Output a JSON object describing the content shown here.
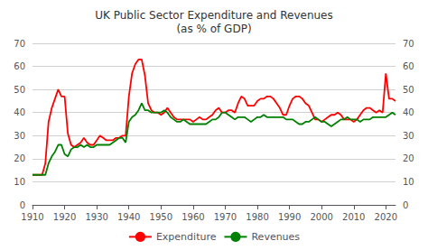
{
  "chart_data": {
    "type": "line",
    "title": "UK Public Sector Expenditure and Revenues\n(as % of GDP)",
    "x": [
      1910,
      1911,
      1912,
      1913,
      1914,
      1915,
      1916,
      1917,
      1918,
      1919,
      1920,
      1921,
      1922,
      1923,
      1924,
      1925,
      1926,
      1927,
      1928,
      1929,
      1930,
      1931,
      1932,
      1933,
      1934,
      1935,
      1936,
      1937,
      1938,
      1939,
      1940,
      1941,
      1942,
      1943,
      1944,
      1945,
      1946,
      1947,
      1948,
      1949,
      1950,
      1951,
      1952,
      1953,
      1954,
      1955,
      1956,
      1957,
      1958,
      1959,
      1960,
      1961,
      1962,
      1963,
      1964,
      1965,
      1966,
      1967,
      1968,
      1969,
      1970,
      1971,
      1972,
      1973,
      1974,
      1975,
      1976,
      1977,
      1978,
      1979,
      1980,
      1981,
      1982,
      1983,
      1984,
      1985,
      1986,
      1987,
      1988,
      1989,
      1990,
      1991,
      1992,
      1993,
      1994,
      1995,
      1996,
      1997,
      1998,
      1999,
      2000,
      2001,
      2002,
      2003,
      2004,
      2005,
      2006,
      2007,
      2008,
      2009,
      2010,
      2011,
      2012,
      2013,
      2014,
      2015,
      2016,
      2017,
      2018,
      2019,
      2020,
      2021,
      2022,
      2023
    ],
    "series": [
      {
        "name": "Expenditure",
        "color": "#FF0000",
        "values": [
          13,
          13,
          13,
          13,
          18,
          36,
          42,
          46,
          50,
          47,
          47,
          31,
          26,
          25,
          26,
          27,
          29,
          27,
          26,
          26,
          28,
          30,
          29,
          28,
          28,
          28,
          29,
          29,
          30,
          30,
          47,
          57,
          61,
          63,
          63,
          56,
          44,
          41,
          40,
          40,
          39,
          40,
          42,
          40,
          38,
          37,
          37,
          37,
          37,
          37,
          36,
          37,
          38,
          37,
          37,
          38,
          39,
          41,
          42,
          40,
          40,
          41,
          41,
          40,
          44,
          47,
          46,
          43,
          43,
          43,
          45,
          46,
          46,
          47,
          47,
          46,
          44,
          42,
          39,
          39,
          43,
          46,
          47,
          47,
          46,
          44,
          43,
          40,
          37,
          37,
          36,
          37,
          38,
          39,
          39,
          40,
          39,
          37,
          37,
          37,
          36,
          37,
          39,
          41,
          42,
          42,
          41,
          40,
          41,
          40,
          57,
          46,
          46,
          45
        ]
      },
      {
        "name": "Revenues",
        "color": "#008000",
        "values": [
          13,
          13,
          13,
          13,
          13,
          18,
          21,
          23,
          26,
          26,
          22,
          21,
          24,
          25,
          25,
          26,
          25,
          26,
          25,
          25,
          26,
          26,
          26,
          26,
          26,
          27,
          28,
          29,
          29,
          27,
          36,
          38,
          39,
          41,
          44,
          41,
          41,
          40,
          40,
          40,
          40,
          41,
          40,
          38,
          37,
          36,
          36,
          37,
          36,
          35,
          35,
          35,
          35,
          35,
          35,
          36,
          37,
          37,
          38,
          40,
          40,
          39,
          38,
          37,
          38,
          38,
          38,
          37,
          36,
          37,
          38,
          38,
          39,
          38,
          38,
          38,
          38,
          38,
          38,
          37,
          37,
          37,
          36,
          35,
          35,
          36,
          36,
          37,
          38,
          37,
          36,
          36,
          35,
          34,
          35,
          36,
          37,
          37,
          38,
          37,
          37,
          37,
          36,
          37,
          37,
          37,
          38,
          38,
          38,
          38,
          38,
          39,
          40,
          39
        ]
      }
    ],
    "xlim": [
      1910,
      2023
    ],
    "xticks": [
      1910,
      1920,
      1930,
      1940,
      1950,
      1960,
      1970,
      1980,
      1990,
      2000,
      2010,
      2020
    ],
    "ylim": [
      0,
      70
    ],
    "yticks": [
      0,
      10,
      20,
      30,
      40,
      50,
      60,
      70
    ],
    "y2lim": [
      0,
      70
    ],
    "y2ticks": [
      0,
      10,
      20,
      30,
      40,
      50,
      60,
      70
    ],
    "grid": true,
    "legend": "bottom"
  }
}
